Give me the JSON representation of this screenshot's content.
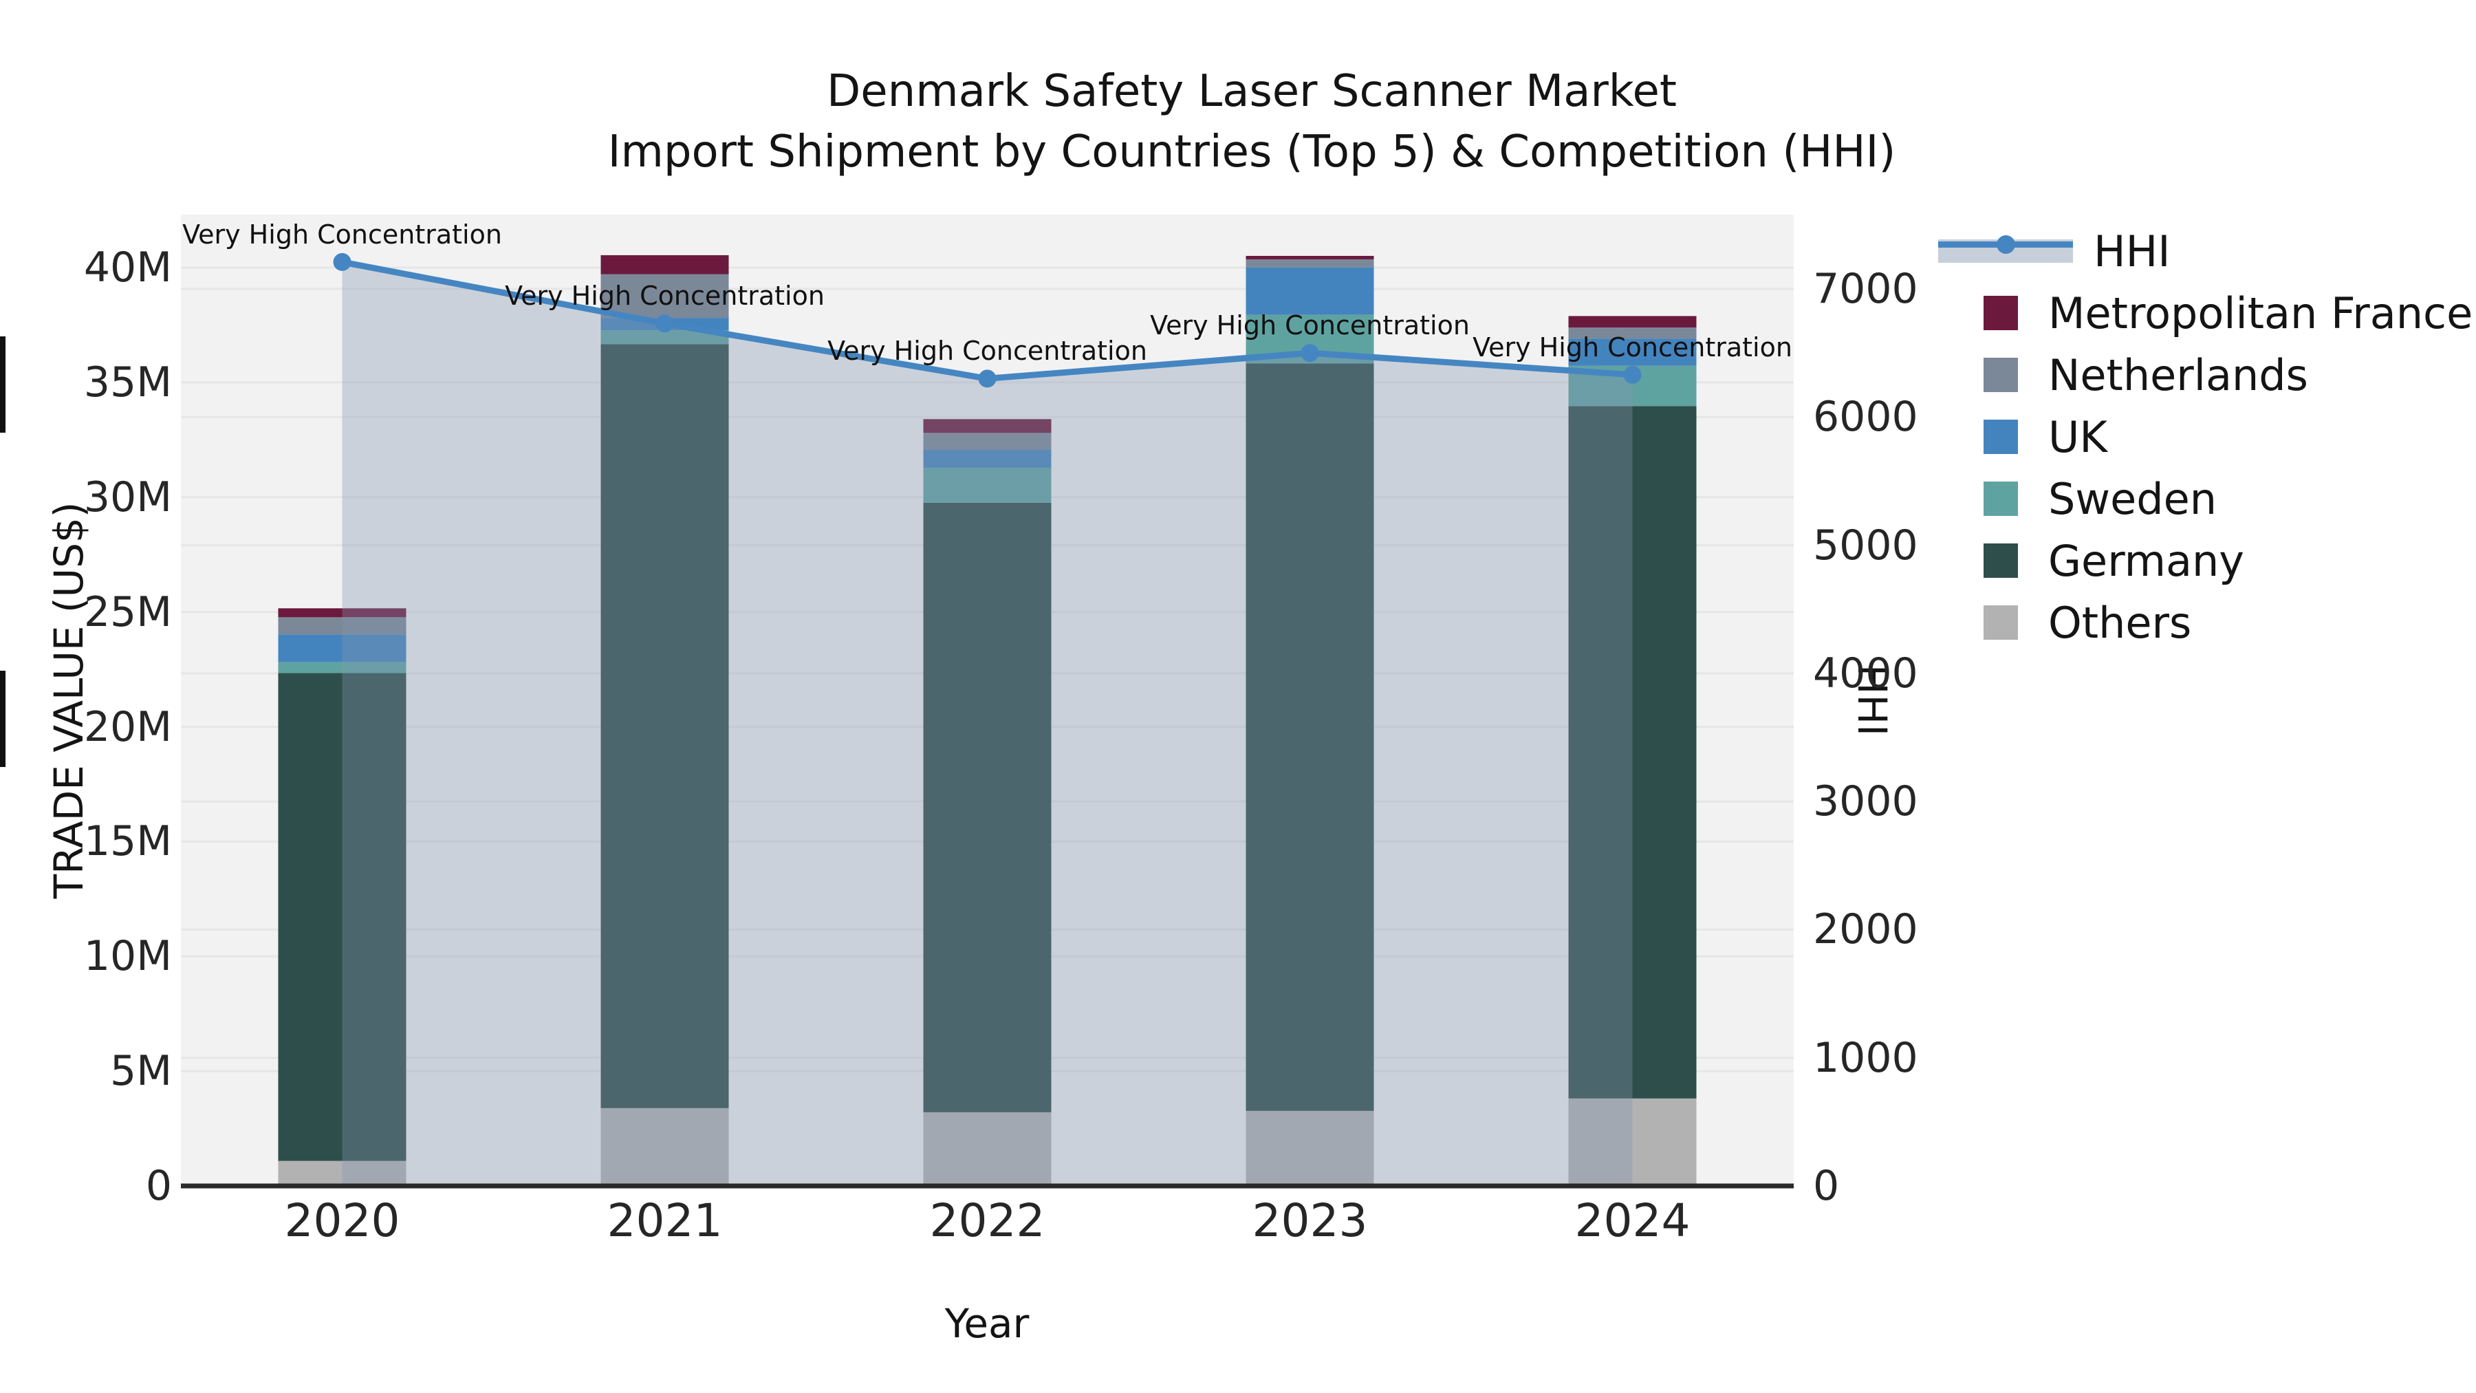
{
  "figure": {
    "title_line1": "Denmark Safety Laser Scanner Market",
    "title_line2": "Import Shipment by Countries (Top 5) & Competition (HHI)"
  },
  "chart_data": {
    "type": "bar",
    "subtype": "stacked-bars-with-line",
    "title": "Denmark Safety Laser Scanner Market — Import Shipment by Countries (Top 5) & Competition (HHI)",
    "categories": [
      "2020",
      "2021",
      "2022",
      "2023",
      "2024"
    ],
    "bar_value_unit": "million US$",
    "series": [
      {
        "name": "Others",
        "color": "#b2b2b2",
        "values": [
          1.09,
          3.39,
          3.21,
          3.27,
          3.81
        ]
      },
      {
        "name": "Germany",
        "color": "#2e4e4b",
        "values": [
          21.25,
          33.27,
          26.55,
          32.55,
          30.16
        ]
      },
      {
        "name": "Sweden",
        "color": "#5fa3a1",
        "values": [
          0.48,
          0.61,
          1.52,
          2.12,
          1.75
        ]
      },
      {
        "name": "UK",
        "color": "#4484be",
        "values": [
          1.2,
          0.54,
          0.78,
          2.07,
          1.19
        ]
      },
      {
        "name": "Netherlands",
        "color": "#7b8898",
        "values": [
          0.75,
          1.9,
          0.74,
          0.35,
          0.48
        ]
      },
      {
        "name": "Metropolitan France",
        "color": "#6b1a3d",
        "values": [
          0.39,
          0.83,
          0.6,
          0.15,
          0.5
        ]
      }
    ],
    "bar_totals": [
      25.2,
      40.5,
      33.4,
      40.5,
      37.9
    ],
    "line_series": {
      "name": "HHI",
      "axis": "right",
      "color": "#4586c2",
      "area_fill": "rgba(131,149,176,0.35)",
      "values": [
        7210,
        6730,
        6300,
        6500,
        6330
      ]
    },
    "annotations": [
      {
        "category": "2020",
        "text": "Very High Concentration"
      },
      {
        "category": "2021",
        "text": "Very High Concentration"
      },
      {
        "category": "2022",
        "text": "Very High Concentration"
      },
      {
        "category": "2023",
        "text": "Very High Concentration"
      },
      {
        "category": "2024",
        "text": "Very High Concentration"
      }
    ],
    "left_axis": {
      "label": "TRADE VALUE (US$)",
      "ticks": [
        "0",
        "5M",
        "10M",
        "15M",
        "20M",
        "25M",
        "30M",
        "35M",
        "40M"
      ],
      "tick_values": [
        0,
        5,
        10,
        15,
        20,
        25,
        30,
        35,
        40
      ],
      "range": [
        0,
        40
      ]
    },
    "right_axis": {
      "label": "HHI",
      "ticks": [
        "0",
        "1000",
        "2000",
        "3000",
        "4000",
        "5000",
        "6000",
        "7000"
      ],
      "tick_values": [
        0,
        1000,
        2000,
        3000,
        4000,
        5000,
        6000,
        7000
      ],
      "range": [
        0,
        7000
      ]
    },
    "x_axis": {
      "label": "Year"
    },
    "grid": true,
    "legend_position": "right",
    "legend": [
      {
        "label": "HHI",
        "type": "line"
      },
      {
        "label": "Metropolitan France",
        "type": "swatch",
        "color": "#6b1a3d"
      },
      {
        "label": "Netherlands",
        "type": "swatch",
        "color": "#7b8898"
      },
      {
        "label": "UK",
        "type": "swatch",
        "color": "#4484be"
      },
      {
        "label": "Sweden",
        "type": "swatch",
        "color": "#5fa3a1"
      },
      {
        "label": "Germany",
        "type": "swatch",
        "color": "#2e4e4b"
      },
      {
        "label": "Others",
        "type": "swatch",
        "color": "#b2b2b2"
      }
    ],
    "style": {
      "plot_background": "#f2f2f2",
      "gridline_color": "#e6e6e6",
      "axis_spine_color": "#2a2a2a"
    }
  }
}
